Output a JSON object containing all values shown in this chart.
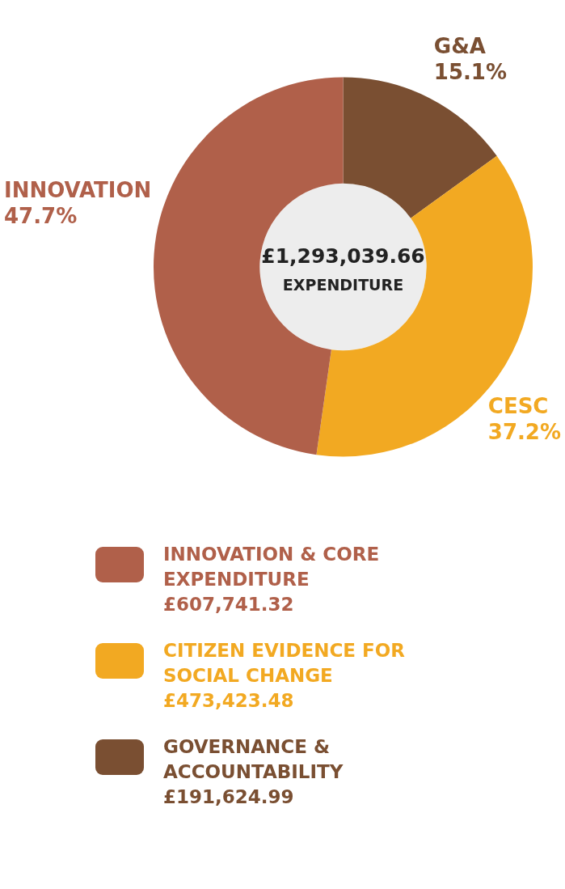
{
  "chart_data": {
    "type": "donut",
    "title": "£1,293,039.66",
    "subtitle": "EXPENDITURE",
    "categories": [
      "INNOVATION & CORE EXPENDITURE",
      "CITIZEN EVIDENCE FOR SOCIAL CHANGE",
      "GOVERNANCE & ACCOUNTABILITY"
    ],
    "values": [
      607741.32,
      473423.48,
      191624.99
    ],
    "value_labels": [
      "£607,741.32",
      "£473,423.48",
      "£191,624.99"
    ],
    "colors": [
      "#b0604a",
      "#f2a922",
      "#7a4f32"
    ],
    "legend": "bottom",
    "annotations": [
      "INNOVATION\n47.7%",
      "CESC\n37.2%",
      "G&A\n15.1%"
    ]
  }
}
